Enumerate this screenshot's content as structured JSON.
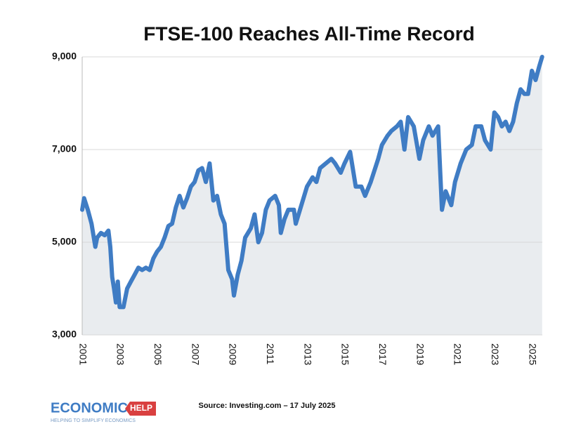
{
  "chart_data": {
    "type": "line",
    "title": "FTSE-100 Reaches All-Time Record",
    "source": "Source: Investing.com – 17 July 2025",
    "color": "#3f7cc4",
    "area_color": "#e9ecef",
    "grid": true,
    "xlim": [
      2001,
      2025.56
    ],
    "xticks": [
      2001,
      2003,
      2005,
      2007,
      2009,
      2011,
      2013,
      2015,
      2017,
      2019,
      2021,
      2023,
      2025
    ],
    "ylim": [
      3000,
      9000
    ],
    "yticks": [
      {
        "value": 3000,
        "label": "3,000"
      },
      {
        "value": 5000,
        "label": "5,000"
      },
      {
        "value": 7000,
        "label": "7,000"
      },
      {
        "value": 9000,
        "label": "9,000"
      }
    ],
    "x": [
      2001.0,
      2001.1,
      2001.3,
      2001.5,
      2001.7,
      2001.8,
      2002.0,
      2002.2,
      2002.4,
      2002.5,
      2002.6,
      2002.7,
      2002.8,
      2002.9,
      2003.0,
      2003.2,
      2003.4,
      2003.6,
      2003.8,
      2004.0,
      2004.2,
      2004.4,
      2004.6,
      2004.8,
      2005.0,
      2005.2,
      2005.4,
      2005.6,
      2005.8,
      2006.0,
      2006.2,
      2006.4,
      2006.6,
      2006.8,
      2007.0,
      2007.2,
      2007.4,
      2007.6,
      2007.8,
      2008.0,
      2008.2,
      2008.4,
      2008.6,
      2008.8,
      2009.0,
      2009.1,
      2009.3,
      2009.5,
      2009.7,
      2010.0,
      2010.2,
      2010.4,
      2010.6,
      2010.8,
      2011.0,
      2011.3,
      2011.5,
      2011.6,
      2011.8,
      2012.0,
      2012.3,
      2012.4,
      2012.7,
      2013.0,
      2013.3,
      2013.5,
      2013.7,
      2014.0,
      2014.3,
      2014.5,
      2014.8,
      2015.0,
      2015.3,
      2015.6,
      2015.9,
      2016.1,
      2016.4,
      2016.8,
      2017.0,
      2017.3,
      2017.5,
      2017.8,
      2018.0,
      2018.2,
      2018.4,
      2018.7,
      2019.0,
      2019.2,
      2019.5,
      2019.7,
      2020.0,
      2020.2,
      2020.4,
      2020.7,
      2020.9,
      2021.2,
      2021.5,
      2021.8,
      2022.0,
      2022.3,
      2022.5,
      2022.8,
      2023.0,
      2023.2,
      2023.4,
      2023.6,
      2023.8,
      2024.0,
      2024.2,
      2024.4,
      2024.6,
      2024.8,
      2025.0,
      2025.2,
      2025.4,
      2025.55
    ],
    "values": [
      5700,
      5950,
      5700,
      5400,
      4900,
      5100,
      5200,
      5150,
      5250,
      4900,
      4250,
      4000,
      3700,
      4150,
      3600,
      3600,
      4000,
      4150,
      4300,
      4450,
      4400,
      4450,
      4400,
      4650,
      4800,
      4900,
      5100,
      5350,
      5400,
      5750,
      6000,
      5750,
      5950,
      6200,
      6300,
      6550,
      6600,
      6300,
      6700,
      5900,
      6000,
      5600,
      5400,
      4400,
      4200,
      3850,
      4300,
      4600,
      5100,
      5300,
      5600,
      5000,
      5200,
      5700,
      5900,
      6000,
      5800,
      5200,
      5500,
      5700,
      5700,
      5400,
      5800,
      6200,
      6400,
      6300,
      6600,
      6700,
      6800,
      6700,
      6500,
      6700,
      6950,
      6200,
      6200,
      6000,
      6300,
      6800,
      7100,
      7300,
      7400,
      7500,
      7600,
      7000,
      7700,
      7500,
      6800,
      7200,
      7500,
      7300,
      7500,
      5700,
      6100,
      5800,
      6300,
      6700,
      7000,
      7100,
      7500,
      7500,
      7200,
      7000,
      7800,
      7700,
      7500,
      7600,
      7400,
      7600,
      8000,
      8300,
      8200,
      8200,
      8700,
      8500,
      8800,
      9000
    ]
  },
  "logo": {
    "name": "ECONOMICS",
    "badge": "HELP",
    "tagline": "HELPING TO SIMPLIFY ECONOMICS"
  }
}
